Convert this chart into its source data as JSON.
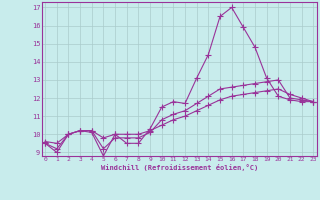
{
  "xlabel": "Windchill (Refroidissement éolien,°C)",
  "background_color": "#c8ecec",
  "grid_color": "#aaccaa",
  "line_color": "#993399",
  "xmin": 0,
  "xmax": 23,
  "ymin": 9,
  "ymax": 17,
  "x_ticks": [
    0,
    1,
    2,
    3,
    4,
    5,
    6,
    7,
    8,
    9,
    10,
    11,
    12,
    13,
    14,
    15,
    16,
    17,
    18,
    19,
    20,
    21,
    22,
    23
  ],
  "y_ticks": [
    9,
    10,
    11,
    12,
    13,
    14,
    15,
    16,
    17
  ],
  "series": [
    [
      9.5,
      9.0,
      10.0,
      10.2,
      10.1,
      8.8,
      10.0,
      9.5,
      9.5,
      10.3,
      11.5,
      11.8,
      11.7,
      13.1,
      14.4,
      16.5,
      17.0,
      15.9,
      14.8,
      13.1,
      12.1,
      11.9,
      11.8,
      11.8
    ],
    [
      9.5,
      9.2,
      10.0,
      10.2,
      10.2,
      9.2,
      9.8,
      9.8,
      9.8,
      10.1,
      10.8,
      11.1,
      11.3,
      11.7,
      12.1,
      12.5,
      12.6,
      12.7,
      12.8,
      12.9,
      13.0,
      12.0,
      11.9,
      11.8
    ],
    [
      9.6,
      9.5,
      10.0,
      10.2,
      10.2,
      9.8,
      10.0,
      10.0,
      10.0,
      10.2,
      10.5,
      10.8,
      11.0,
      11.3,
      11.6,
      11.9,
      12.1,
      12.2,
      12.3,
      12.4,
      12.5,
      12.2,
      12.0,
      11.8
    ]
  ]
}
